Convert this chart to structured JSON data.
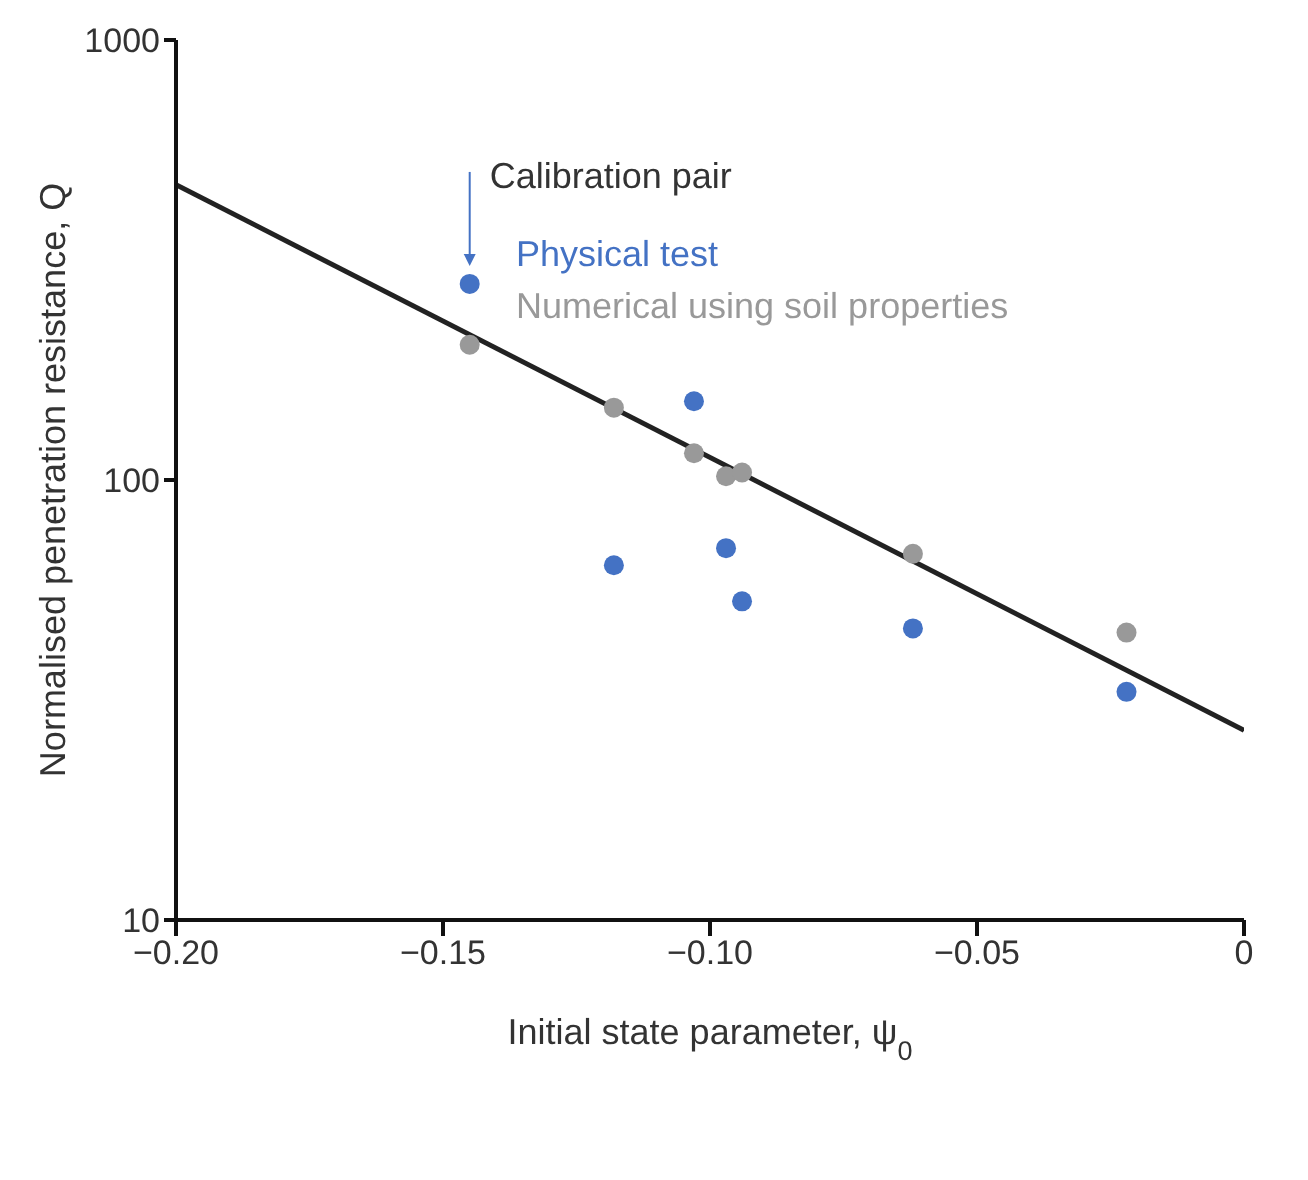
{
  "chart_data": {
    "type": "scatter",
    "xlabel": "Initial state parameter, ψ$_{0}$",
    "ylabel": "Normalised penetration resistance, Q",
    "log": "y",
    "xlim": [
      -0.2,
      0
    ],
    "xticks": [
      {
        "value": -0.2,
        "label": "−0.20"
      },
      {
        "value": -0.15,
        "label": "−0.15"
      },
      {
        "value": -0.1,
        "label": "−0.10"
      },
      {
        "value": -0.05,
        "label": "−0.05"
      },
      0
    ],
    "ylim": [
      10,
      1000
    ],
    "yticks": [
      10,
      100,
      1000
    ],
    "legend": "top left",
    "marker": "circle",
    "annotations": [
      {
        "text": "Calibration pair",
        "x": -0.145,
        "y": 279
      }
    ],
    "series": [
      {
        "name": "Physical test",
        "color": "#4472c4",
        "x": [
          -0.145,
          -0.103,
          -0.118,
          -0.097,
          -0.094,
          -0.062,
          -0.022
        ],
        "values": [
          279,
          151,
          64,
          70,
          53,
          46,
          33
        ]
      },
      {
        "name": "Numerical using soil properties",
        "color": "#999999",
        "x": [
          -0.145,
          -0.118,
          -0.103,
          -0.097,
          -0.094,
          -0.062,
          -0.022
        ],
        "values": [
          203,
          146,
          115,
          102,
          104,
          68,
          45
        ]
      },
      {
        "type": "line",
        "color": "#222222",
        "x": [
          -0.2,
          0
        ],
        "values": [
          469,
          27
        ],
        "marker": "none",
        "line_style": "solid"
      }
    ]
  }
}
